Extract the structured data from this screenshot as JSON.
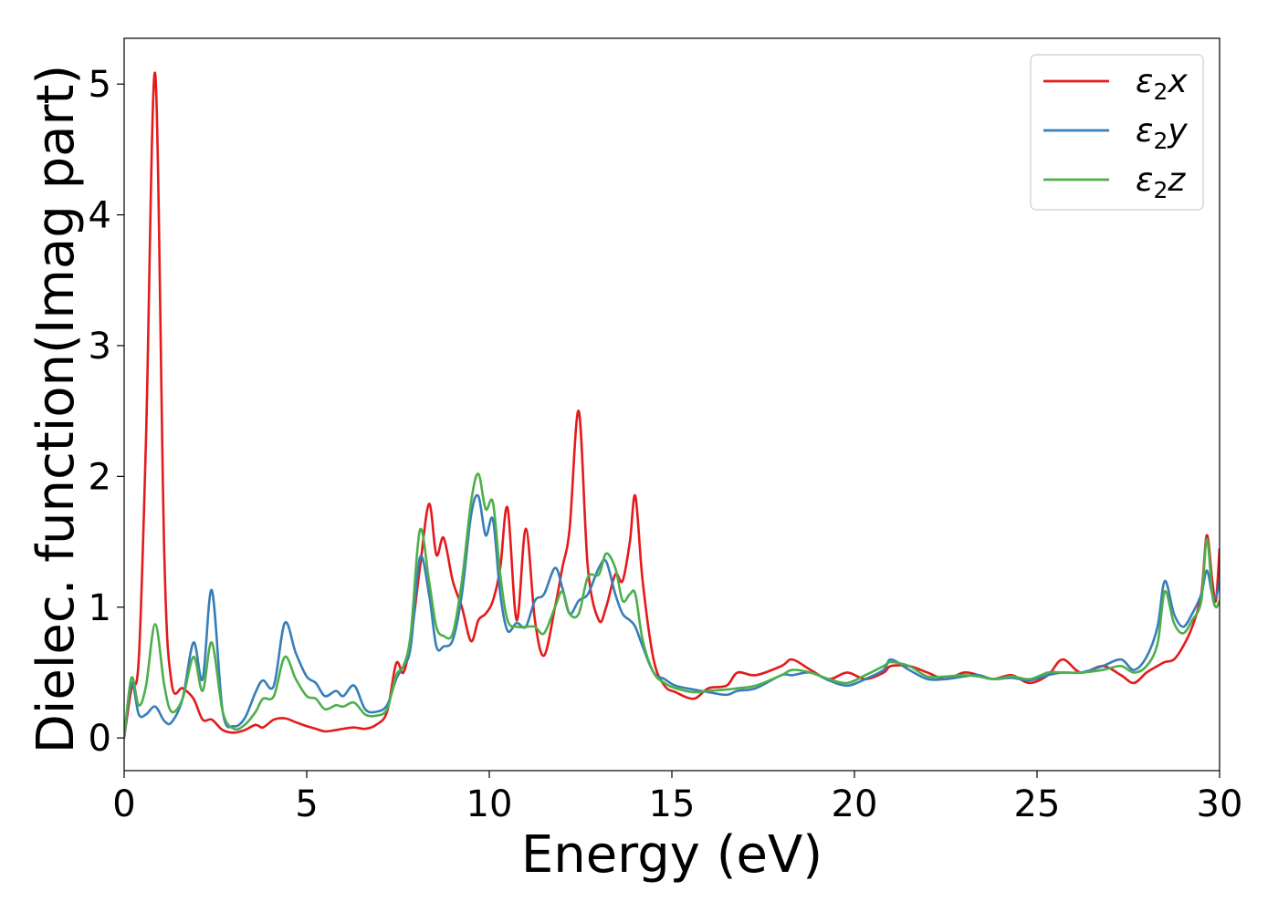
{
  "chart_data": {
    "type": "line",
    "xlabel": "Energy (eV)",
    "ylabel": "Dielec. function(Imag part)",
    "xlim": [
      0,
      30
    ],
    "ylim": [
      -0.25,
      5.35
    ],
    "xticks": [
      0,
      5,
      10,
      15,
      20,
      25,
      30
    ],
    "yticks": [
      0,
      1,
      2,
      3,
      4,
      5
    ],
    "grid": false,
    "legend_position": "top-right",
    "x": [
      0,
      0.2,
      0.4,
      0.6,
      0.85,
      1.1,
      1.3,
      1.6,
      1.9,
      2.15,
      2.4,
      2.7,
      3.0,
      3.3,
      3.6,
      3.8,
      4.1,
      4.4,
      4.7,
      5.0,
      5.25,
      5.5,
      5.8,
      6.0,
      6.3,
      6.6,
      6.9,
      7.2,
      7.45,
      7.65,
      7.85,
      8.1,
      8.35,
      8.55,
      8.75,
      9.0,
      9.25,
      9.5,
      9.7,
      9.9,
      10.1,
      10.3,
      10.5,
      10.75,
      11.0,
      11.25,
      11.5,
      11.8,
      12.0,
      12.2,
      12.45,
      12.7,
      13.0,
      13.2,
      13.45,
      13.65,
      13.85,
      14.0,
      14.2,
      14.5,
      14.8,
      15.1,
      15.6,
      16.0,
      16.5,
      16.8,
      17.3,
      18.0,
      18.3,
      18.8,
      19.3,
      19.8,
      20.3,
      20.8,
      21.0,
      21.5,
      22.0,
      22.5,
      23.0,
      23.4,
      23.8,
      24.3,
      24.8,
      25.3,
      25.7,
      26.2,
      26.8,
      27.3,
      27.65,
      28.0,
      28.3,
      28.5,
      28.75,
      29.0,
      29.25,
      29.5,
      29.65,
      29.8,
      29.9,
      30.0
    ],
    "series": [
      {
        "name": "ε2x",
        "color": "#e41a1c",
        "values": [
          0.0,
          0.38,
          0.6,
          2.3,
          5.08,
          1.4,
          0.42,
          0.38,
          0.3,
          0.14,
          0.14,
          0.06,
          0.04,
          0.06,
          0.1,
          0.08,
          0.14,
          0.15,
          0.12,
          0.09,
          0.07,
          0.05,
          0.06,
          0.07,
          0.08,
          0.07,
          0.1,
          0.2,
          0.57,
          0.5,
          0.75,
          1.3,
          1.79,
          1.4,
          1.53,
          1.2,
          1.0,
          0.74,
          0.9,
          0.95,
          1.05,
          1.3,
          1.76,
          0.9,
          1.6,
          0.9,
          0.63,
          1.0,
          1.3,
          1.6,
          2.5,
          1.3,
          0.9,
          1.0,
          1.25,
          1.2,
          1.5,
          1.85,
          1.2,
          0.6,
          0.4,
          0.35,
          0.3,
          0.38,
          0.4,
          0.5,
          0.48,
          0.55,
          0.6,
          0.52,
          0.45,
          0.5,
          0.45,
          0.5,
          0.55,
          0.55,
          0.5,
          0.45,
          0.5,
          0.48,
          0.45,
          0.48,
          0.42,
          0.48,
          0.6,
          0.5,
          0.55,
          0.48,
          0.42,
          0.5,
          0.55,
          0.58,
          0.6,
          0.7,
          0.85,
          1.1,
          1.55,
          1.2,
          1.05,
          1.45
        ]
      },
      {
        "name": "ε2y",
        "color": "#377eb8",
        "values": [
          0.0,
          0.42,
          0.18,
          0.18,
          0.24,
          0.13,
          0.12,
          0.3,
          0.73,
          0.45,
          1.13,
          0.2,
          0.09,
          0.15,
          0.35,
          0.44,
          0.4,
          0.88,
          0.65,
          0.47,
          0.42,
          0.32,
          0.36,
          0.32,
          0.4,
          0.22,
          0.2,
          0.25,
          0.45,
          0.55,
          0.7,
          1.38,
          1.1,
          0.7,
          0.7,
          0.75,
          1.1,
          1.7,
          1.85,
          1.55,
          1.67,
          1.1,
          0.82,
          0.88,
          0.85,
          1.05,
          1.1,
          1.3,
          1.15,
          0.95,
          1.05,
          1.1,
          1.3,
          1.35,
          1.1,
          0.95,
          0.9,
          0.85,
          0.7,
          0.5,
          0.45,
          0.4,
          0.37,
          0.35,
          0.33,
          0.36,
          0.38,
          0.48,
          0.48,
          0.5,
          0.44,
          0.4,
          0.45,
          0.52,
          0.6,
          0.52,
          0.45,
          0.45,
          0.47,
          0.48,
          0.45,
          0.46,
          0.44,
          0.48,
          0.5,
          0.5,
          0.55,
          0.6,
          0.52,
          0.62,
          0.85,
          1.2,
          0.95,
          0.85,
          0.95,
          1.1,
          1.28,
          1.1,
          1.08,
          1.2
        ]
      },
      {
        "name": "ε2z",
        "color": "#4daf4a",
        "values": [
          0.0,
          0.46,
          0.25,
          0.4,
          0.87,
          0.4,
          0.2,
          0.3,
          0.62,
          0.36,
          0.73,
          0.2,
          0.07,
          0.1,
          0.2,
          0.3,
          0.32,
          0.62,
          0.45,
          0.32,
          0.3,
          0.22,
          0.25,
          0.24,
          0.27,
          0.18,
          0.17,
          0.22,
          0.48,
          0.55,
          0.8,
          1.59,
          1.2,
          0.85,
          0.78,
          0.8,
          1.2,
          1.8,
          2.02,
          1.75,
          1.8,
          1.25,
          0.9,
          0.85,
          0.85,
          0.85,
          0.8,
          1.0,
          1.12,
          0.95,
          0.95,
          1.23,
          1.25,
          1.41,
          1.3,
          1.05,
          1.1,
          1.1,
          0.75,
          0.5,
          0.42,
          0.38,
          0.35,
          0.36,
          0.37,
          0.38,
          0.4,
          0.48,
          0.52,
          0.5,
          0.45,
          0.42,
          0.48,
          0.55,
          0.58,
          0.55,
          0.47,
          0.47,
          0.48,
          0.47,
          0.45,
          0.47,
          0.45,
          0.5,
          0.5,
          0.5,
          0.52,
          0.55,
          0.5,
          0.55,
          0.72,
          1.12,
          0.88,
          0.8,
          0.9,
          1.05,
          1.52,
          1.1,
          1.0,
          1.05
        ]
      }
    ]
  }
}
